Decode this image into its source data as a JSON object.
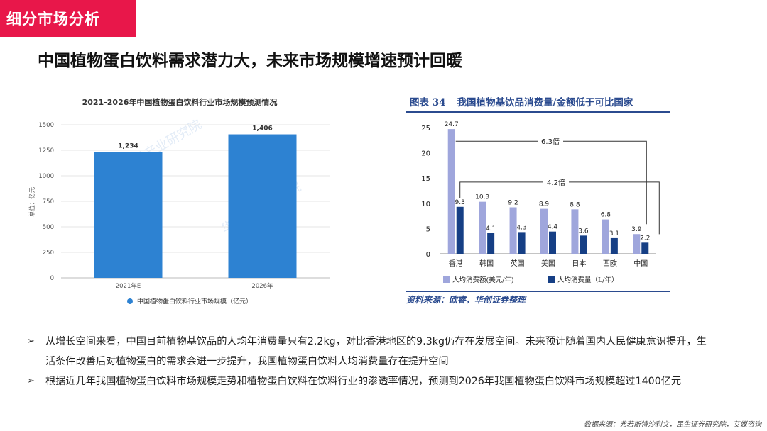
{
  "section_tag": "细分市场分析",
  "headline": "中国植物蛋白饮料需求潜力大，未来市场规模增速预计回暖",
  "left_chart": {
    "title": "2021-2026年中国植物蛋白饮料行业市场规模预测情况",
    "ylabel": "单位：亿元",
    "legend": "中国植物蛋白饮料行业市场规模（亿元）",
    "watermark": "华经产业研究院",
    "color": "#2d82d2"
  },
  "right_chart": {
    "fig_num": "图表 34",
    "fig_title": "我国植物基饮品消费量/金额低于可比国家",
    "source": "资料来源：欧睿，华创证券整理",
    "annotation_6x": "6.3倍",
    "annotation_4x": "4.2倍",
    "color_light": "#9fa6dc",
    "color_dark": "#163f85"
  },
  "chart_data": [
    {
      "type": "bar",
      "title": "2021-2026年中国植物蛋白饮料行业市场规模预测情况",
      "categories": [
        "2021年E",
        "2026年"
      ],
      "series": [
        {
          "name": "中国植物蛋白饮料行业市场规模（亿元）",
          "values": [
            1234,
            1406
          ]
        }
      ],
      "value_labels": [
        "1,234",
        "1,406"
      ],
      "ylabel": "单位：亿元",
      "ylim": [
        0,
        1500
      ],
      "yticks": [
        0,
        250,
        500,
        750,
        1000,
        1250,
        1500
      ],
      "grid": true,
      "legend": "bottom"
    },
    {
      "type": "bar",
      "title": "我国植物基饮品消费量/金额低于可比国家",
      "categories": [
        "香港",
        "韩国",
        "英国",
        "美国",
        "日本",
        "西欧",
        "中国"
      ],
      "series": [
        {
          "name": "人均消费额(美元/年)",
          "values": [
            24.7,
            10.3,
            9.2,
            8.9,
            8.8,
            6.8,
            3.9
          ]
        },
        {
          "name": "人均消费量（L/年）",
          "values": [
            9.3,
            4.1,
            4.3,
            4.4,
            3.6,
            3.1,
            2.2
          ]
        }
      ],
      "ylim": [
        0,
        25
      ],
      "yticks": [
        0,
        5,
        10,
        15,
        20,
        25
      ],
      "grid": false,
      "legend": "bottom"
    }
  ],
  "bullets": [
    "从增长空间来看，中国目前植物基饮品的人均年消费量只有2.2kg，对比香港地区的9.3kg仍存在发展空间。未来预计随着国内人民健康意识提升，生活条件改善后对植物蛋白的需求会进一步提升，我国植物蛋白饮料人均消费量存在提升空间",
    "根据近几年我国植物蛋白饮料市场规模走势和植物蛋白饮料在饮料行业的渗透率情况，预测到2026年我国植物蛋白饮料市场规模超过1400亿元"
  ],
  "bullet_marker": "➢",
  "footnote": "数据来源：弗若斯特沙利文，民生证券研究院，艾媒咨询"
}
